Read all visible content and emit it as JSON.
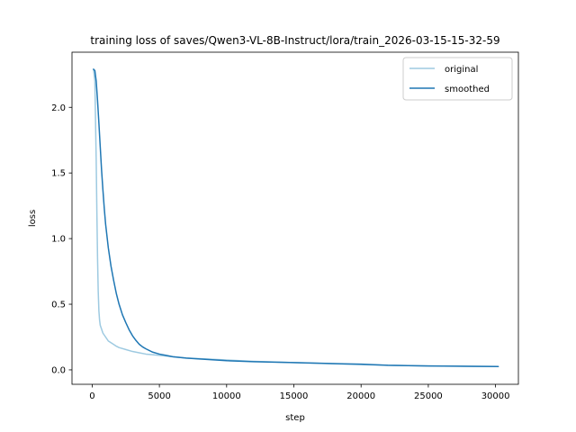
{
  "chart_data": {
    "type": "line",
    "title": "training loss of saves/Qwen3-VL-8B-Instruct/lora/train_2026-03-15-15-32-59",
    "xlabel": "step",
    "ylabel": "loss",
    "xlim": [
      -1500,
      31700
    ],
    "ylim": [
      -0.11,
      2.42
    ],
    "xticks": [
      0,
      5000,
      10000,
      15000,
      20000,
      25000,
      30000
    ],
    "xtick_labels": [
      "0",
      "5000",
      "10000",
      "15000",
      "20000",
      "25000",
      "30000"
    ],
    "yticks": [
      0.0,
      0.5,
      1.0,
      1.5,
      2.0
    ],
    "ytick_labels": [
      "0.0",
      "0.5",
      "1.0",
      "1.5",
      "2.0"
    ],
    "grid": false,
    "legend_position": "top-right",
    "series": [
      {
        "name": "original",
        "color": "#9ecae1",
        "x": [
          100,
          200,
          300,
          350,
          400,
          450,
          500,
          550,
          600,
          700,
          800,
          1000,
          1200,
          1500,
          1800,
          2000,
          2500,
          3000,
          3500,
          4000,
          4500,
          5000,
          5500,
          6000,
          7000,
          8000,
          10000,
          12000,
          15000,
          20000,
          22000,
          25000,
          28000,
          30200
        ],
        "y": [
          2.29,
          2.2,
          1.6,
          1.2,
          0.85,
          0.6,
          0.45,
          0.38,
          0.34,
          0.31,
          0.28,
          0.25,
          0.22,
          0.2,
          0.18,
          0.17,
          0.155,
          0.14,
          0.13,
          0.12,
          0.115,
          0.11,
          0.105,
          0.1,
          0.09,
          0.085,
          0.075,
          0.065,
          0.055,
          0.04,
          0.035,
          0.03,
          0.027,
          0.025
        ]
      },
      {
        "name": "smoothed",
        "color": "#1f77b4",
        "x": [
          100,
          200,
          300,
          400,
          500,
          600,
          700,
          800,
          900,
          1000,
          1200,
          1400,
          1600,
          1800,
          2000,
          2250,
          2500,
          2750,
          3000,
          3250,
          3500,
          3750,
          4000,
          4500,
          5000,
          5500,
          6000,
          7000,
          8000,
          10000,
          12000,
          15000,
          18000,
          20000,
          22000,
          25000,
          28000,
          30200
        ],
        "y": [
          2.29,
          2.28,
          2.2,
          2.05,
          1.88,
          1.7,
          1.52,
          1.37,
          1.23,
          1.11,
          0.93,
          0.79,
          0.68,
          0.58,
          0.5,
          0.42,
          0.36,
          0.305,
          0.26,
          0.225,
          0.195,
          0.175,
          0.16,
          0.135,
          0.12,
          0.11,
          0.1,
          0.09,
          0.083,
          0.07,
          0.062,
          0.055,
          0.048,
          0.043,
          0.035,
          0.03,
          0.027,
          0.025
        ]
      }
    ]
  }
}
